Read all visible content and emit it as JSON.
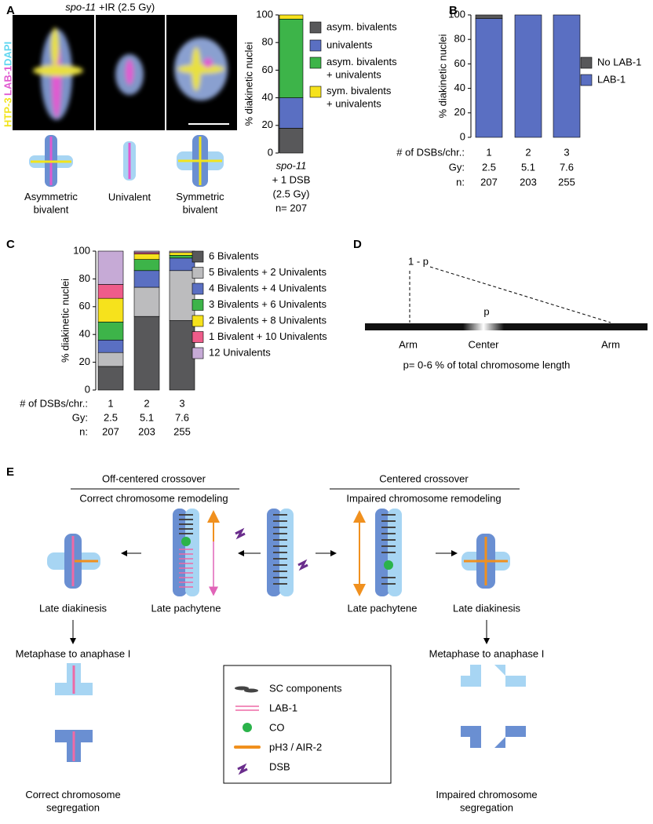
{
  "panel_labels": [
    "A",
    "B",
    "C",
    "D",
    "E"
  ],
  "panel_a": {
    "title_italic": "spo-11",
    "title": "+IR (2.5 Gy)",
    "stain_labels": [
      "HTP-3",
      "LAB-1",
      "DAPI"
    ],
    "diagram_labels": [
      "Asymmetric\nbivalent",
      "Univalent",
      "Symmetric\nbivalent"
    ]
  },
  "chart_data": [
    {
      "type": "bar",
      "stacked": true,
      "y_label": "% diakinetic nuclei",
      "category_lines": [
        "spo-11",
        "+ 1 DSB",
        "(2.5 Gy)",
        "n= 207"
      ],
      "series": [
        {
          "name": "asym. bivalents",
          "color": "#58585a",
          "values": [
            18
          ]
        },
        {
          "name": "univalents",
          "color": "#5a6fc2",
          "values": [
            22
          ]
        },
        {
          "name": "asym. bivalents\n+ univalents",
          "color": "#3db449",
          "values": [
            57
          ]
        },
        {
          "name": "sym. bivalents\n+ univalents",
          "color": "#f6e21c",
          "values": [
            3
          ]
        }
      ],
      "ylim": [
        0,
        100
      ],
      "yticks": [
        0,
        20,
        40,
        60,
        80,
        100
      ]
    },
    {
      "type": "bar",
      "stacked": true,
      "y_label": "% diakinetic nuclei",
      "category_title": "# of DSBs/chr.:",
      "categories": [
        "1",
        "2",
        "3"
      ],
      "rows": [
        {
          "label": "Gy:",
          "values": [
            2.5,
            5.1,
            7.6
          ]
        },
        {
          "label": "n:",
          "values": [
            207,
            203,
            255
          ]
        }
      ],
      "series": [
        {
          "name": "LAB-1",
          "color": "#5a6fc2",
          "values": [
            97,
            100,
            100
          ]
        },
        {
          "name": "No LAB-1",
          "color": "#58585a",
          "values": [
            3,
            0,
            0
          ]
        }
      ],
      "ylim": [
        0,
        100
      ],
      "yticks": [
        0,
        20,
        40,
        60,
        80,
        100
      ]
    },
    {
      "type": "bar",
      "stacked": true,
      "y_label": "% diakinetic nuclei",
      "category_title": "# of DSBs/chr.:",
      "categories": [
        "1",
        "2",
        "3"
      ],
      "rows": [
        {
          "label": "Gy:",
          "values": [
            2.5,
            5.1,
            7.6
          ]
        },
        {
          "label": "n:",
          "values": [
            207,
            203,
            255
          ]
        }
      ],
      "series": [
        {
          "name": "6 Bivalents",
          "color": "#58585a",
          "values": [
            17,
            53,
            50
          ]
        },
        {
          "name": "5 Bivalents + 2 Univalents",
          "color": "#bcbcbe",
          "values": [
            10,
            21,
            36
          ]
        },
        {
          "name": "4 Bivalents + 4 Univalents",
          "color": "#5a6fc2",
          "values": [
            9,
            12,
            9
          ]
        },
        {
          "name": "3 Bivalents + 6 Univalents",
          "color": "#3db449",
          "values": [
            13,
            8,
            2
          ]
        },
        {
          "name": "2 Bivalents + 8 Univalents",
          "color": "#f6e21c",
          "values": [
            17,
            4,
            2
          ]
        },
        {
          "name": "1 Bivalent + 10 Univalents",
          "color": "#ee5c8a",
          "values": [
            10,
            1,
            0
          ]
        },
        {
          "name": "12 Univalents",
          "color": "#c6aad6",
          "values": [
            24,
            1,
            1
          ]
        }
      ],
      "ylim": [
        0,
        100
      ],
      "yticks": [
        0,
        20,
        40,
        60,
        80,
        100
      ]
    }
  ],
  "panel_d": {
    "arm_label": "1 - p",
    "center_label": "p",
    "positions": [
      "Arm",
      "Center",
      "Arm"
    ],
    "caption": "p= 0-6 % of total chromosome length"
  },
  "panel_e": {
    "left_header": "Off-centered crossover",
    "left_subheader": "Correct chromosome remodeling",
    "right_header": "Centered crossover",
    "right_subheader": "Impaired chromosome remodeling",
    "stages": [
      "Late diakinesis",
      "Late pachytene",
      "Late pachytene",
      "Late diakinesis"
    ],
    "metaphase": [
      "Metaphase to anaphase I",
      "Metaphase to anaphase I"
    ],
    "outcomes": [
      "Correct chromosome\nsegregation",
      "Impaired chromosome\nsegregation"
    ],
    "legend": [
      "SC components",
      "LAB-1",
      "CO",
      "pH3 / AIR-2",
      "DSB"
    ]
  }
}
